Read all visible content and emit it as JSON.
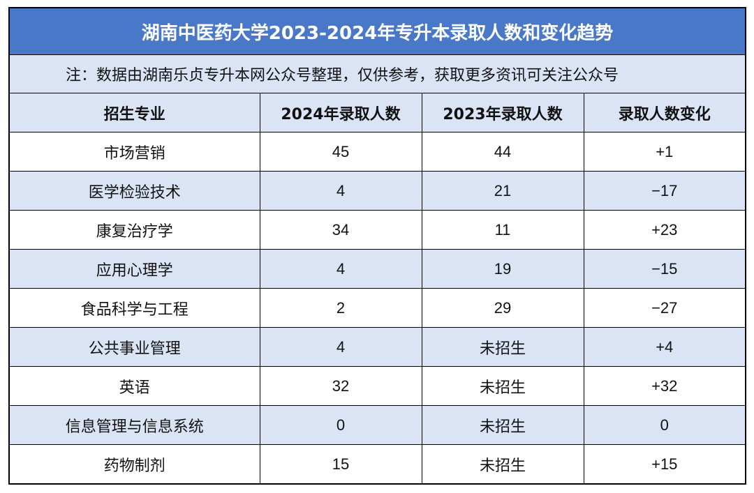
{
  "title": "湖南中医药大学2023-2024年专升本录取人数和变化趋势",
  "note": "注：数据由湖南乐贞专升本网公众号整理，仅供参考，获取更多资讯可关注公众号",
  "headers": [
    "招生专业",
    "2024年录取人数",
    "2023年录取人数",
    "录取人数变化"
  ],
  "rows": [
    [
      "市场营销",
      "45",
      "44",
      "+1"
    ],
    [
      "医学检验技术",
      "4",
      "21",
      "−17"
    ],
    [
      "康复治疗学",
      "34",
      "11",
      "+23"
    ],
    [
      "应用心理学",
      "4",
      "19",
      "−15"
    ],
    [
      "食品科学与工程",
      "2",
      "29",
      "−27"
    ],
    [
      "公共事业管理",
      "4",
      "未招生",
      "+4"
    ],
    [
      "英语",
      "32",
      "未招生",
      "+32"
    ],
    [
      "信息管理与信息系统",
      "0",
      "未招生",
      "0"
    ],
    [
      "药物制剂",
      "15",
      "未招生",
      "+15"
    ]
  ],
  "colors": {
    "title_bg": "#4a78c9",
    "stripe_bg": "#dbe4f5",
    "border": "#000000"
  }
}
